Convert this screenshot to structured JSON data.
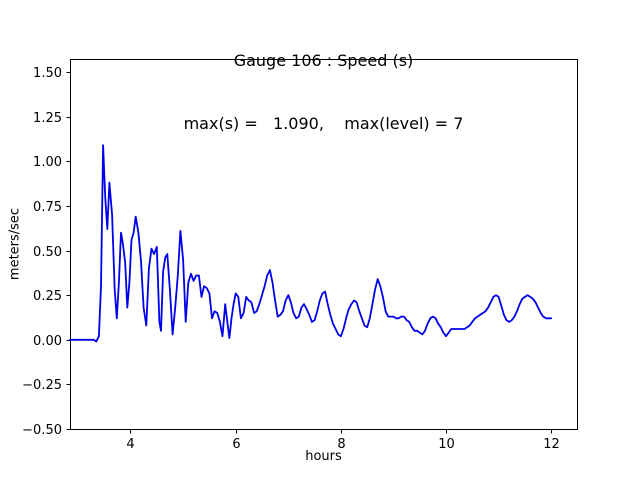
{
  "chart_data": {
    "type": "line",
    "title": "Gauge 106 : Speed (s)",
    "subtitle": "max(s) =   1.090,    max(level) = 7",
    "xlabel": "hours",
    "ylabel": "meters/sec",
    "xlim": [
      2.85,
      12.49
    ],
    "ylim": [
      -0.5,
      1.573
    ],
    "xticks": [
      4,
      6,
      8,
      10,
      12
    ],
    "xtick_labels": [
      "4",
      "6",
      "8",
      "10",
      "12"
    ],
    "yticks": [
      -0.5,
      -0.25,
      0.0,
      0.25,
      0.5,
      0.75,
      1.0,
      1.25,
      1.5
    ],
    "ytick_labels": [
      "−0.50",
      "−0.25",
      "0.00",
      "0.25",
      "0.50",
      "0.75",
      "1.00",
      "1.25",
      "1.50"
    ],
    "grid": false,
    "legend": "none",
    "line_color": "#0000ee",
    "max_s": 1.09,
    "max_level": 7,
    "series": [
      {
        "name": "speed",
        "points": [
          [
            2.85,
            0.0
          ],
          [
            3.0,
            0.0
          ],
          [
            3.1,
            0.0
          ],
          [
            3.2,
            0.0
          ],
          [
            3.3,
            0.0
          ],
          [
            3.35,
            -0.01
          ],
          [
            3.4,
            0.02
          ],
          [
            3.44,
            0.3
          ],
          [
            3.48,
            1.09
          ],
          [
            3.52,
            0.8
          ],
          [
            3.56,
            0.62
          ],
          [
            3.6,
            0.88
          ],
          [
            3.65,
            0.7
          ],
          [
            3.7,
            0.28
          ],
          [
            3.74,
            0.12
          ],
          [
            3.78,
            0.32
          ],
          [
            3.82,
            0.6
          ],
          [
            3.86,
            0.53
          ],
          [
            3.9,
            0.43
          ],
          [
            3.94,
            0.18
          ],
          [
            3.98,
            0.32
          ],
          [
            4.02,
            0.56
          ],
          [
            4.06,
            0.6
          ],
          [
            4.1,
            0.69
          ],
          [
            4.15,
            0.6
          ],
          [
            4.2,
            0.44
          ],
          [
            4.25,
            0.18
          ],
          [
            4.3,
            0.08
          ],
          [
            4.35,
            0.4
          ],
          [
            4.4,
            0.51
          ],
          [
            4.45,
            0.48
          ],
          [
            4.5,
            0.52
          ],
          [
            4.55,
            0.1
          ],
          [
            4.58,
            0.05
          ],
          [
            4.62,
            0.38
          ],
          [
            4.66,
            0.46
          ],
          [
            4.7,
            0.48
          ],
          [
            4.75,
            0.28
          ],
          [
            4.8,
            0.03
          ],
          [
            4.85,
            0.18
          ],
          [
            4.9,
            0.36
          ],
          [
            4.95,
            0.61
          ],
          [
            5.0,
            0.45
          ],
          [
            5.05,
            0.1
          ],
          [
            5.1,
            0.32
          ],
          [
            5.15,
            0.37
          ],
          [
            5.2,
            0.33
          ],
          [
            5.25,
            0.36
          ],
          [
            5.3,
            0.36
          ],
          [
            5.35,
            0.24
          ],
          [
            5.4,
            0.3
          ],
          [
            5.45,
            0.29
          ],
          [
            5.5,
            0.26
          ],
          [
            5.55,
            0.12
          ],
          [
            5.6,
            0.16
          ],
          [
            5.65,
            0.15
          ],
          [
            5.7,
            0.1
          ],
          [
            5.75,
            0.02
          ],
          [
            5.8,
            0.2
          ],
          [
            5.84,
            0.1
          ],
          [
            5.88,
            0.01
          ],
          [
            5.92,
            0.12
          ],
          [
            5.96,
            0.2
          ],
          [
            6.0,
            0.26
          ],
          [
            6.05,
            0.24
          ],
          [
            6.1,
            0.12
          ],
          [
            6.15,
            0.15
          ],
          [
            6.2,
            0.24
          ],
          [
            6.25,
            0.22
          ],
          [
            6.3,
            0.21
          ],
          [
            6.35,
            0.15
          ],
          [
            6.4,
            0.16
          ],
          [
            6.45,
            0.2
          ],
          [
            6.5,
            0.25
          ],
          [
            6.55,
            0.3
          ],
          [
            6.6,
            0.36
          ],
          [
            6.65,
            0.39
          ],
          [
            6.7,
            0.32
          ],
          [
            6.75,
            0.22
          ],
          [
            6.8,
            0.13
          ],
          [
            6.85,
            0.14
          ],
          [
            6.9,
            0.16
          ],
          [
            6.95,
            0.22
          ],
          [
            7.0,
            0.25
          ],
          [
            7.05,
            0.21
          ],
          [
            7.1,
            0.15
          ],
          [
            7.15,
            0.12
          ],
          [
            7.2,
            0.13
          ],
          [
            7.25,
            0.18
          ],
          [
            7.3,
            0.2
          ],
          [
            7.35,
            0.17
          ],
          [
            7.4,
            0.14
          ],
          [
            7.45,
            0.1
          ],
          [
            7.5,
            0.11
          ],
          [
            7.55,
            0.16
          ],
          [
            7.6,
            0.22
          ],
          [
            7.65,
            0.26
          ],
          [
            7.7,
            0.27
          ],
          [
            7.75,
            0.2
          ],
          [
            7.8,
            0.14
          ],
          [
            7.85,
            0.09
          ],
          [
            7.9,
            0.06
          ],
          [
            7.95,
            0.03
          ],
          [
            8.0,
            0.02
          ],
          [
            8.05,
            0.06
          ],
          [
            8.1,
            0.12
          ],
          [
            8.15,
            0.17
          ],
          [
            8.2,
            0.2
          ],
          [
            8.25,
            0.22
          ],
          [
            8.3,
            0.21
          ],
          [
            8.35,
            0.16
          ],
          [
            8.4,
            0.12
          ],
          [
            8.45,
            0.08
          ],
          [
            8.5,
            0.07
          ],
          [
            8.55,
            0.12
          ],
          [
            8.6,
            0.2
          ],
          [
            8.65,
            0.28
          ],
          [
            8.7,
            0.34
          ],
          [
            8.75,
            0.3
          ],
          [
            8.8,
            0.24
          ],
          [
            8.85,
            0.16
          ],
          [
            8.9,
            0.13
          ],
          [
            8.95,
            0.13
          ],
          [
            9.0,
            0.13
          ],
          [
            9.05,
            0.12
          ],
          [
            9.1,
            0.12
          ],
          [
            9.15,
            0.13
          ],
          [
            9.2,
            0.13
          ],
          [
            9.25,
            0.11
          ],
          [
            9.3,
            0.1
          ],
          [
            9.35,
            0.07
          ],
          [
            9.4,
            0.05
          ],
          [
            9.45,
            0.05
          ],
          [
            9.5,
            0.04
          ],
          [
            9.55,
            0.03
          ],
          [
            9.6,
            0.05
          ],
          [
            9.65,
            0.09
          ],
          [
            9.7,
            0.12
          ],
          [
            9.75,
            0.13
          ],
          [
            9.8,
            0.12
          ],
          [
            9.85,
            0.09
          ],
          [
            9.9,
            0.07
          ],
          [
            9.95,
            0.04
          ],
          [
            10.0,
            0.02
          ],
          [
            10.05,
            0.04
          ],
          [
            10.1,
            0.06
          ],
          [
            10.15,
            0.06
          ],
          [
            10.2,
            0.06
          ],
          [
            10.25,
            0.06
          ],
          [
            10.3,
            0.06
          ],
          [
            10.35,
            0.06
          ],
          [
            10.4,
            0.07
          ],
          [
            10.45,
            0.08
          ],
          [
            10.5,
            0.1
          ],
          [
            10.55,
            0.12
          ],
          [
            10.6,
            0.13
          ],
          [
            10.65,
            0.14
          ],
          [
            10.7,
            0.15
          ],
          [
            10.75,
            0.16
          ],
          [
            10.8,
            0.18
          ],
          [
            10.85,
            0.21
          ],
          [
            10.9,
            0.24
          ],
          [
            10.95,
            0.25
          ],
          [
            11.0,
            0.24
          ],
          [
            11.05,
            0.19
          ],
          [
            11.1,
            0.14
          ],
          [
            11.15,
            0.11
          ],
          [
            11.2,
            0.1
          ],
          [
            11.25,
            0.11
          ],
          [
            11.3,
            0.13
          ],
          [
            11.35,
            0.16
          ],
          [
            11.4,
            0.2
          ],
          [
            11.45,
            0.23
          ],
          [
            11.5,
            0.24
          ],
          [
            11.55,
            0.25
          ],
          [
            11.6,
            0.24
          ],
          [
            11.65,
            0.23
          ],
          [
            11.7,
            0.21
          ],
          [
            11.75,
            0.18
          ],
          [
            11.8,
            0.15
          ],
          [
            11.85,
            0.13
          ],
          [
            11.9,
            0.12
          ],
          [
            11.95,
            0.12
          ],
          [
            12.0,
            0.12
          ]
        ]
      }
    ]
  }
}
